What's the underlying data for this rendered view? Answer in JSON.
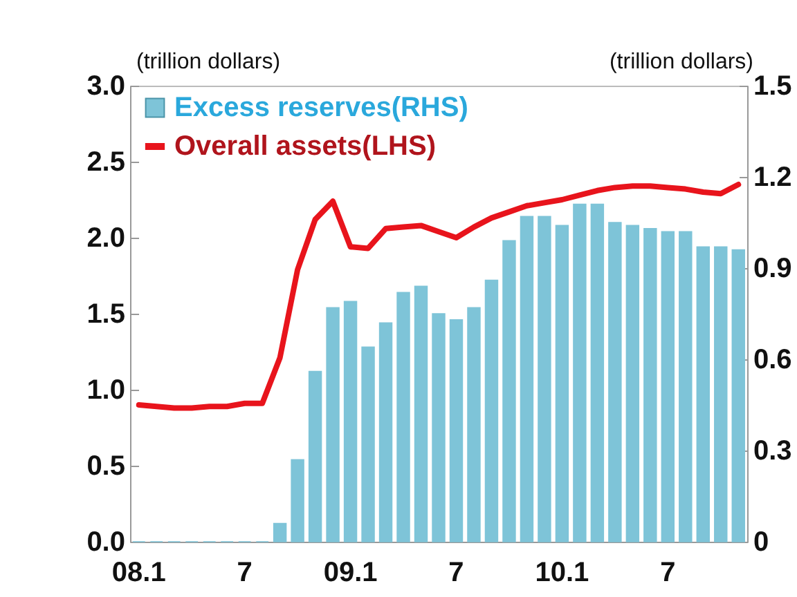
{
  "chart_data": {
    "type": "bar",
    "categories": [
      "08.1",
      null,
      null,
      null,
      null,
      null,
      "7",
      null,
      null,
      null,
      null,
      null,
      "09.1",
      null,
      null,
      null,
      null,
      null,
      "7",
      null,
      null,
      null,
      null,
      null,
      "10.1",
      null,
      null,
      null,
      null,
      null,
      "7",
      null,
      null,
      null,
      null
    ],
    "series": [
      {
        "name": "Excess reserves(RHS)",
        "axis": "y2",
        "color": "#7ec4d8",
        "values": [
          0,
          0,
          0,
          0,
          0,
          0,
          0,
          0,
          0.06,
          0.27,
          0.56,
          0.77,
          0.79,
          0.64,
          0.72,
          0.82,
          0.84,
          0.75,
          0.73,
          0.77,
          0.86,
          0.99,
          1.07,
          1.07,
          1.04,
          1.11,
          1.11,
          1.05,
          1.04,
          1.03,
          1.02,
          1.02,
          0.97,
          0.97,
          0.96
        ]
      },
      {
        "name": "Overall assets(LHS)",
        "type": "line",
        "color": "#e8141c",
        "values": [
          0.9,
          0.89,
          0.88,
          0.88,
          0.89,
          0.89,
          0.91,
          0.91,
          1.21,
          1.79,
          2.12,
          2.24,
          1.94,
          1.93,
          2.06,
          2.07,
          2.08,
          2.04,
          2.0,
          2.07,
          2.13,
          2.17,
          2.21,
          2.23,
          2.25,
          2.28,
          2.31,
          2.33,
          2.34,
          2.34,
          2.33,
          2.32,
          2.3,
          2.29,
          2.35
        ]
      }
    ],
    "ylabel": "(trillion dollars)",
    "y2label": "(trillion dollars)",
    "ylim": [
      0,
      3
    ],
    "yticks": [
      {
        "value": 0,
        "label": "0.0"
      },
      {
        "value": 0.5,
        "label": "0.5"
      },
      {
        "value": 1,
        "label": "1.0"
      },
      {
        "value": 1.5,
        "label": "1.5"
      },
      {
        "value": 2,
        "label": "2.0"
      },
      {
        "value": 2.5,
        "label": "2.5"
      },
      {
        "value": 3,
        "label": "3.0"
      }
    ],
    "y2lim": [
      0,
      1.5
    ],
    "y2ticks": [
      0,
      0.3,
      0.6,
      0.9,
      1.2,
      1.5
    ],
    "legend": "top left"
  }
}
